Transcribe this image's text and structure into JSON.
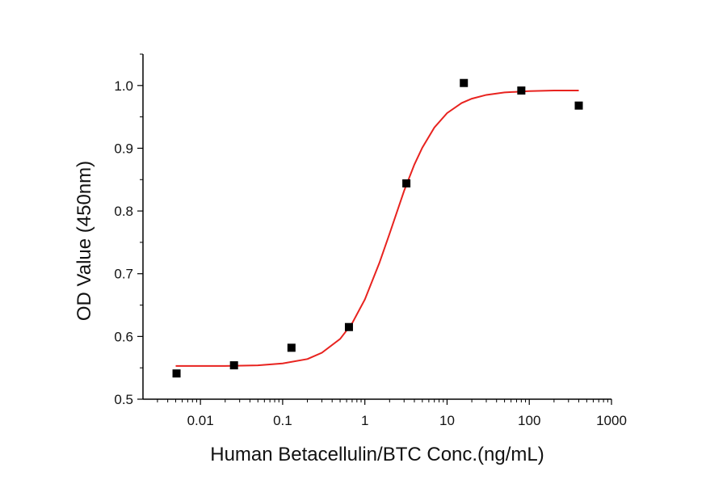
{
  "chart_data": {
    "type": "scatter",
    "x_label": "Human Betacellulin/BTC Conc.(ng/mL)",
    "y_label": "OD Value (450nm)",
    "x_log": true,
    "xlim": [
      0.002,
      1000
    ],
    "xticks": [
      0.01,
      0.1,
      1,
      10,
      100,
      1000
    ],
    "xminorticks": [
      0.003,
      0.004,
      0.005,
      0.006,
      0.007,
      0.008,
      0.009,
      0.02,
      0.03,
      0.04,
      0.05,
      0.06,
      0.07,
      0.08,
      0.09,
      0.2,
      0.3,
      0.4,
      0.5,
      0.6,
      0.7,
      0.8,
      0.9,
      2,
      3,
      4,
      5,
      6,
      7,
      8,
      9,
      20,
      30,
      40,
      50,
      60,
      70,
      80,
      90,
      200,
      300,
      400,
      500,
      600,
      700,
      800,
      900
    ],
    "ylim": [
      0.5,
      1.05
    ],
    "yticks": [
      0.5,
      0.6,
      0.7,
      0.8,
      0.9,
      {
        "value": 1,
        "label": "1.0"
      }
    ],
    "yminorticks": [
      0.55,
      0.65,
      0.75,
      0.85,
      0.95,
      1.05
    ],
    "marker_color": "#000000",
    "x": [
      0.00512,
      0.0256,
      0.128,
      0.64,
      3.2,
      16,
      80,
      400
    ],
    "values": [
      0.541,
      0.554,
      0.582,
      0.615,
      0.844,
      1.004,
      0.992,
      0.968
    ],
    "fit": {
      "color": "#e8231f",
      "x": [
        0.005,
        0.01,
        0.02,
        0.05,
        0.1,
        0.2,
        0.3,
        0.5,
        0.7,
        1,
        1.5,
        2,
        3,
        4,
        5,
        7,
        10,
        15,
        20,
        30,
        50,
        100,
        200,
        400
      ],
      "values": [
        0.553,
        0.553,
        0.553,
        0.554,
        0.557,
        0.564,
        0.574,
        0.596,
        0.621,
        0.659,
        0.717,
        0.764,
        0.832,
        0.874,
        0.901,
        0.933,
        0.956,
        0.972,
        0.979,
        0.985,
        0.989,
        0.991,
        0.992,
        0.992
      ]
    }
  }
}
